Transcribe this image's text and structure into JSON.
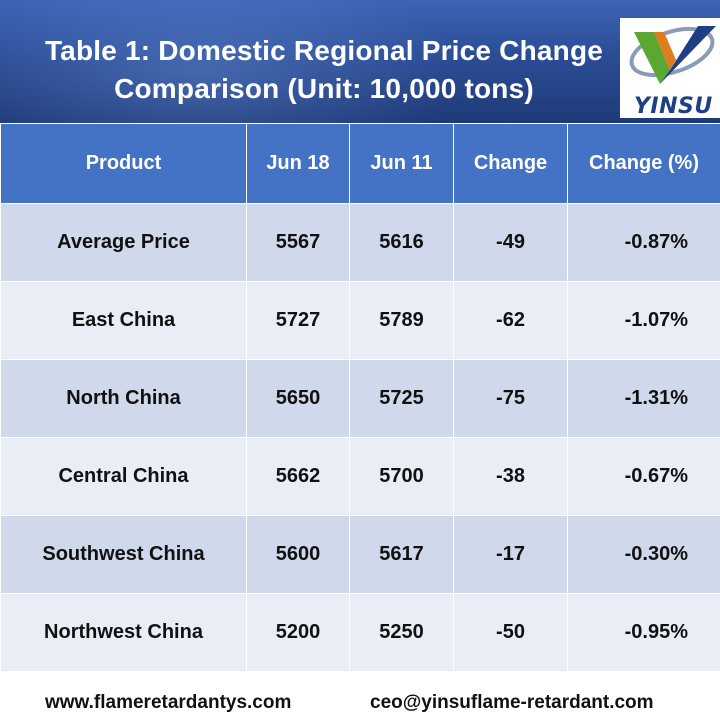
{
  "header": {
    "title_line1": "Table 1: Domestic Regional Price Change",
    "title_line2": "Comparison (Unit: 10,000 tons)",
    "logo_text": "YINSU"
  },
  "table": {
    "columns": [
      "Product",
      "Jun 18",
      "Jun 11",
      "Change",
      "Change (%)"
    ],
    "rows": [
      [
        "Average Price",
        "5567",
        "5616",
        "-49",
        "-0.87%"
      ],
      [
        "East China",
        "5727",
        "5789",
        "-62",
        "-1.07%"
      ],
      [
        "North China",
        "5650",
        "5725",
        "-75",
        "-1.31%"
      ],
      [
        "Central China",
        "5662",
        "5700",
        "-38",
        "-0.67%"
      ],
      [
        "Southwest China",
        "5600",
        "5617",
        "-17",
        "-0.30%"
      ],
      [
        "Northwest China",
        "5200",
        "5250",
        "-50",
        "-0.95%"
      ]
    ]
  },
  "footer": {
    "website": "www.flameretardantys.com",
    "email": "ceo@yinsuflame-retardant.com"
  },
  "colors": {
    "header_bg": "#2b4d96",
    "table_header_bg": "#4472c4",
    "row_dark": "#d0d8eb",
    "row_light": "#e9edf6",
    "logo_green": "#5aa832",
    "logo_blue": "#1e3f86"
  }
}
